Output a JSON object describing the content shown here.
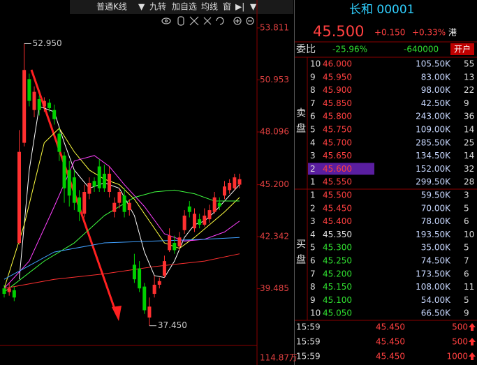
{
  "toolbar": {
    "items": [
      "普通K线",
      "▼",
      "九转",
      "加自选",
      "均线",
      "窗",
      "▶|",
      "▼"
    ]
  },
  "chart_data": {
    "type": "candlestick",
    "ylim": [
      36.365,
      54.578
    ],
    "yticks": [
      53.811,
      50.953,
      48.096,
      {
        "value": 45.2,
        "label": "45.200"
      },
      42.342,
      39.485
    ],
    "high_label": {
      "value": 52.95,
      "label": "52.950"
    },
    "low_label": {
      "value": 37.45,
      "label": "37.450"
    },
    "volume_label": "114.87万",
    "up_color": "#ff3030",
    "down_color": "#00d000",
    "flat_color": "#ffffff",
    "candles": [
      {
        "open": 39.5,
        "close": 39.2,
        "high": 39.7,
        "low": 39.0
      },
      {
        "open": 39.3,
        "close": 39.5,
        "high": 39.8,
        "low": 39.1
      },
      {
        "open": 39.4,
        "close": 39.0,
        "high": 39.6,
        "low": 38.8
      },
      {
        "open": 42.0,
        "close": 47.0,
        "high": 48.2,
        "low": 41.9
      },
      {
        "open": 47.5,
        "close": 51.5,
        "high": 52.95,
        "low": 47.3
      },
      {
        "open": 51.0,
        "close": 49.8,
        "high": 51.3,
        "low": 49.5
      },
      {
        "open": 49.3,
        "close": 50.3,
        "high": 50.6,
        "low": 48.9
      },
      {
        "open": 49.9,
        "close": 49.3,
        "high": 50.1,
        "low": 49.0
      },
      {
        "open": 49.5,
        "close": 49.8,
        "high": 50.0,
        "low": 49.2
      },
      {
        "open": 49.7,
        "close": 49.4,
        "high": 49.9,
        "low": 49.2
      },
      {
        "open": 49.3,
        "close": 48.8,
        "high": 49.6,
        "low": 48.5
      },
      {
        "open": 48.0,
        "close": 47.0,
        "high": 48.3,
        "low": 46.5
      },
      {
        "open": 46.8,
        "close": 45.0,
        "high": 47.0,
        "low": 44.2
      },
      {
        "open": 46.0,
        "close": 44.6,
        "high": 46.5,
        "low": 44.0
      },
      {
        "open": 45.6,
        "close": 44.2,
        "high": 46.0,
        "low": 43.8
      },
      {
        "open": 44.5,
        "close": 43.7,
        "high": 44.9,
        "low": 43.2
      },
      {
        "open": 43.6,
        "close": 44.8,
        "high": 45.2,
        "low": 43.4
      },
      {
        "open": 44.7,
        "close": 45.3,
        "high": 45.6,
        "low": 44.4
      },
      {
        "open": 45.4,
        "close": 45.1,
        "high": 45.6,
        "low": 44.8
      },
      {
        "open": 46.2,
        "close": 45.0,
        "high": 46.6,
        "low": 44.8
      },
      {
        "open": 45.8,
        "close": 45.0,
        "high": 46.3,
        "low": 44.8
      },
      {
        "open": 44.8,
        "close": 45.8,
        "high": 46.2,
        "low": 44.5
      },
      {
        "open": 43.7,
        "close": 44.2,
        "high": 44.5,
        "low": 43.4
      },
      {
        "open": 44.2,
        "close": 44.8,
        "high": 45.0,
        "low": 43.9
      },
      {
        "open": 44.6,
        "close": 43.7,
        "high": 45.0,
        "low": 43.4
      },
      {
        "open": 43.8,
        "close": 44.2,
        "high": 44.4,
        "low": 43.5
      },
      {
        "open": 40.8,
        "close": 40.0,
        "high": 41.4,
        "low": 39.8
      },
      {
        "open": 40.6,
        "close": 39.5,
        "high": 41.0,
        "low": 39.3
      },
      {
        "open": 39.6,
        "close": 38.3,
        "high": 39.8,
        "low": 38.1
      },
      {
        "open": 37.9,
        "close": 38.5,
        "high": 39.0,
        "low": 37.45
      },
      {
        "open": 39.2,
        "close": 39.7,
        "high": 40.2,
        "low": 39.0
      },
      {
        "open": 39.7,
        "close": 39.9,
        "high": 40.1,
        "low": 39.5
      },
      {
        "open": 40.2,
        "close": 41.0,
        "high": 41.3,
        "low": 40.1
      },
      {
        "open": 41.6,
        "close": 42.4,
        "high": 42.8,
        "low": 41.5
      },
      {
        "open": 42.0,
        "close": 41.6,
        "high": 42.4,
        "low": 41.4
      },
      {
        "open": 41.8,
        "close": 42.3,
        "high": 42.6,
        "low": 41.6
      },
      {
        "open": 42.7,
        "close": 43.5,
        "high": 43.8,
        "low": 42.5
      },
      {
        "open": 44.0,
        "close": 43.7,
        "high": 44.3,
        "low": 43.4
      },
      {
        "open": 42.8,
        "close": 43.6,
        "high": 43.9,
        "low": 42.6
      },
      {
        "open": 43.3,
        "close": 43.0,
        "high": 43.6,
        "low": 42.8
      },
      {
        "open": 43.0,
        "close": 43.5,
        "high": 43.9,
        "low": 42.9
      },
      {
        "open": 43.3,
        "close": 43.8,
        "high": 44.1,
        "low": 43.1
      },
      {
        "open": 43.7,
        "close": 44.5,
        "high": 44.8,
        "low": 43.6
      },
      {
        "open": 44.2,
        "close": 44.0,
        "high": 44.5,
        "low": 43.8
      },
      {
        "open": 44.6,
        "close": 45.1,
        "high": 45.4,
        "low": 44.4
      },
      {
        "open": 44.9,
        "close": 45.3,
        "high": 45.5,
        "low": 44.7
      },
      {
        "open": 45.0,
        "close": 45.6,
        "high": 45.8,
        "low": 44.9
      },
      {
        "open": 45.2,
        "close": 45.5,
        "high": 45.8,
        "low": 45.0
      }
    ],
    "lines": [
      {
        "color": "#ffffff",
        "x": [
          3,
          5,
          7,
          10,
          12,
          14,
          17,
          20,
          23,
          26,
          28,
          30,
          32,
          34,
          36,
          38,
          40,
          42,
          44,
          47
        ],
        "values": [
          40,
          46,
          49.5,
          49.2,
          47.5,
          46,
          45,
          45.3,
          45,
          43.5,
          41.5,
          40.2,
          40.1,
          41,
          42.3,
          43,
          43.2,
          43.7,
          44.3,
          45.2
        ]
      },
      {
        "color": "#ffff40",
        "x": [
          0,
          4,
          8,
          11,
          14,
          17,
          20,
          23,
          26,
          29,
          32,
          35,
          38,
          41,
          44,
          47
        ],
        "values": [
          39.5,
          43,
          47.5,
          48.3,
          47,
          46,
          45.5,
          45.2,
          44.4,
          43.2,
          42,
          41.7,
          42.3,
          43,
          43.7,
          44.5
        ]
      },
      {
        "color": "#ff40ff",
        "x": [
          0,
          5,
          10,
          14,
          18,
          21,
          24,
          28,
          32,
          36,
          40,
          44,
          47
        ],
        "values": [
          39.5,
          41,
          44,
          46.5,
          46.8,
          46.2,
          45.2,
          44,
          42.5,
          42.1,
          42.2,
          42.6,
          43.2
        ]
      },
      {
        "color": "#40ff40",
        "x": [
          0,
          8,
          14,
          20,
          26,
          30,
          34,
          38,
          42,
          47
        ],
        "values": [
          39.3,
          41,
          42,
          43.5,
          44.5,
          44.8,
          44.9,
          44.7,
          44.3,
          44.3
        ]
      },
      {
        "color": "#40a0ff",
        "x": [
          0,
          10,
          20,
          30,
          40,
          47
        ],
        "values": [
          40,
          41.5,
          42,
          42.1,
          42.2,
          42.3
        ]
      },
      {
        "color": "#ff3030",
        "x": [
          0,
          10,
          20,
          30,
          40,
          47
        ],
        "values": [
          39.5,
          40,
          40.3,
          40.7,
          41.0,
          41.4
        ]
      }
    ]
  },
  "quote": {
    "title": "长和 00001",
    "price": "45.500",
    "change": "+0.150",
    "change_pct": "+0.33%",
    "market": "港",
    "ratio_label": "委比",
    "ratio": "-25.96%",
    "diff": "-640000",
    "open_account": "开户",
    "sell_label": "卖盘",
    "buy_label": "买盘"
  },
  "sell": [
    {
      "level": 10,
      "price": "46.000",
      "volume": "105.50K",
      "count": 55,
      "color": "#ff4040"
    },
    {
      "level": 9,
      "price": "45.950",
      "volume": "83.00K",
      "count": 13,
      "color": "#ff4040"
    },
    {
      "level": 8,
      "price": "45.900",
      "volume": "98.00K",
      "count": 22,
      "color": "#ff4040"
    },
    {
      "level": 7,
      "price": "45.850",
      "volume": "42.50K",
      "count": 9,
      "color": "#ff4040"
    },
    {
      "level": 6,
      "price": "45.800",
      "volume": "243.00K",
      "count": 36,
      "color": "#ff4040"
    },
    {
      "level": 5,
      "price": "45.750",
      "volume": "109.00K",
      "count": 14,
      "color": "#ff4040"
    },
    {
      "level": 4,
      "price": "45.700",
      "volume": "285.50K",
      "count": 25,
      "color": "#ff4040"
    },
    {
      "level": 3,
      "price": "45.650",
      "volume": "134.50K",
      "count": 14,
      "color": "#ff4040"
    },
    {
      "level": 2,
      "price": "45.600",
      "volume": "152.00K",
      "count": 32,
      "color": "#ff4040"
    },
    {
      "level": 1,
      "price": "45.550",
      "volume": "299.50K",
      "count": 28,
      "color": "#ff4040"
    }
  ],
  "buy": [
    {
      "level": 1,
      "price": "45.500",
      "volume": "59.50K",
      "count": 3,
      "color": "#ff4040"
    },
    {
      "level": 2,
      "price": "45.450",
      "volume": "70.00K",
      "count": 5,
      "color": "#ff4040"
    },
    {
      "level": 3,
      "price": "45.400",
      "volume": "78.00K",
      "count": 6,
      "color": "#ff4040"
    },
    {
      "level": 4,
      "price": "45.350",
      "volume": "193.50K",
      "count": 10,
      "color": "#e0e0e0"
    },
    {
      "level": 5,
      "price": "45.300",
      "volume": "35.00K",
      "count": 5,
      "color": "#30e030"
    },
    {
      "level": 6,
      "price": "45.250",
      "volume": "74.50K",
      "count": 7,
      "color": "#30e030"
    },
    {
      "level": 7,
      "price": "45.200",
      "volume": "173.50K",
      "count": 6,
      "color": "#30e030"
    },
    {
      "level": 8,
      "price": "45.150",
      "volume": "108.00K",
      "count": 11,
      "color": "#30e030"
    },
    {
      "level": 9,
      "price": "45.100",
      "volume": "54.00K",
      "count": 5,
      "color": "#30e030"
    },
    {
      "level": 10,
      "price": "45.050",
      "volume": "66.50K",
      "count": 9,
      "color": "#30e030"
    }
  ],
  "trades": [
    {
      "time": "15:59",
      "price": "45.450",
      "volume": "500"
    },
    {
      "time": "15:59",
      "price": "45.450",
      "volume": "500"
    },
    {
      "time": "15:59",
      "price": "45.450",
      "volume": "1000"
    }
  ]
}
